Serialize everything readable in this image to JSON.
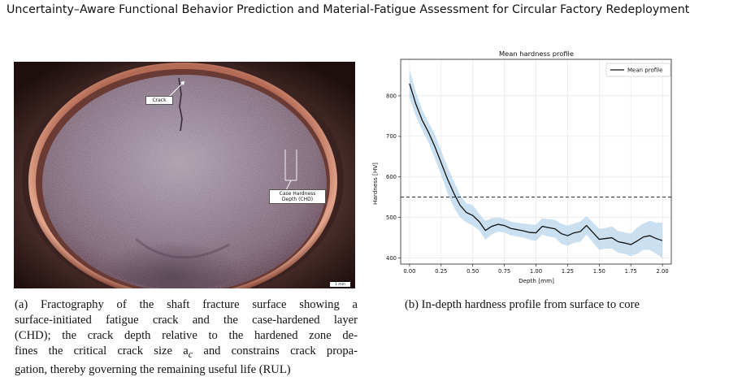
{
  "page": {
    "title": "Uncertainty–Aware Functional Behavior Prediction and Material-Fatigue Assessment for Circular Factory Redeployment"
  },
  "figure_a": {
    "callout_crack": "Crack",
    "callout_chd": "Case Hardness Depth (CHD)",
    "scale_bar": "1 mm",
    "caption_lines": [
      "(a) Fractography of the shaft fracture surface showing a",
      "surface-initiated fatigue crack and the case-hardened layer",
      "(CHD); the crack depth relative to the hardened zone de-",
      "fines the critical crack size a",
      "c",
      " and constrains crack propa-",
      "gation, thereby governing the remaining useful life (RUL)"
    ]
  },
  "figure_b": {
    "caption": "(b) In-depth hardness profile from surface to core"
  },
  "chart_data": {
    "type": "line",
    "title": "Mean hardness profile",
    "xlabel": "Depth [mm]",
    "ylabel": "Hardness [HV]",
    "xlim": [
      -0.07,
      2.07
    ],
    "ylim": [
      385,
      890
    ],
    "xticks": [
      "0.00",
      "0.25",
      "0.50",
      "0.75",
      "1.00",
      "1.25",
      "1.50",
      "1.75",
      "2.00"
    ],
    "yticks": [
      "400",
      "500",
      "600",
      "700",
      "800"
    ],
    "grid": true,
    "legend": "top-right",
    "threshold_line": {
      "y": 550,
      "style": "dashed"
    },
    "series": [
      {
        "name": "Mean profile",
        "x": [
          0.0,
          0.05,
          0.1,
          0.15,
          0.2,
          0.25,
          0.3,
          0.35,
          0.4,
          0.45,
          0.5,
          0.55,
          0.6,
          0.65,
          0.7,
          0.75,
          0.8,
          0.85,
          0.9,
          0.95,
          1.0,
          1.05,
          1.1,
          1.15,
          1.2,
          1.25,
          1.3,
          1.35,
          1.4,
          1.45,
          1.5,
          1.55,
          1.6,
          1.65,
          1.7,
          1.75,
          1.8,
          1.85,
          1.9,
          1.95,
          2.0
        ],
        "values": [
          830,
          780,
          740,
          710,
          675,
          635,
          595,
          560,
          530,
          512,
          505,
          490,
          468,
          478,
          483,
          480,
          473,
          470,
          467,
          463,
          462,
          478,
          475,
          472,
          460,
          455,
          462,
          465,
          480,
          463,
          446,
          448,
          450,
          440,
          437,
          433,
          442,
          452,
          455,
          448,
          443
        ],
        "upper": [
          865,
          810,
          765,
          735,
          705,
          665,
          625,
          590,
          555,
          535,
          530,
          510,
          492,
          498,
          500,
          497,
          490,
          487,
          485,
          483,
          482,
          498,
          496,
          494,
          485,
          480,
          485,
          490,
          503,
          488,
          472,
          474,
          478,
          467,
          463,
          460,
          475,
          485,
          492,
          487,
          487
        ],
        "lower": [
          795,
          750,
          715,
          685,
          645,
          605,
          560,
          525,
          500,
          488,
          480,
          468,
          445,
          458,
          465,
          463,
          456,
          453,
          450,
          445,
          442,
          458,
          453,
          450,
          435,
          430,
          437,
          440,
          458,
          438,
          420,
          423,
          423,
          413,
          410,
          405,
          410,
          420,
          420,
          410,
          400
        ]
      }
    ]
  }
}
